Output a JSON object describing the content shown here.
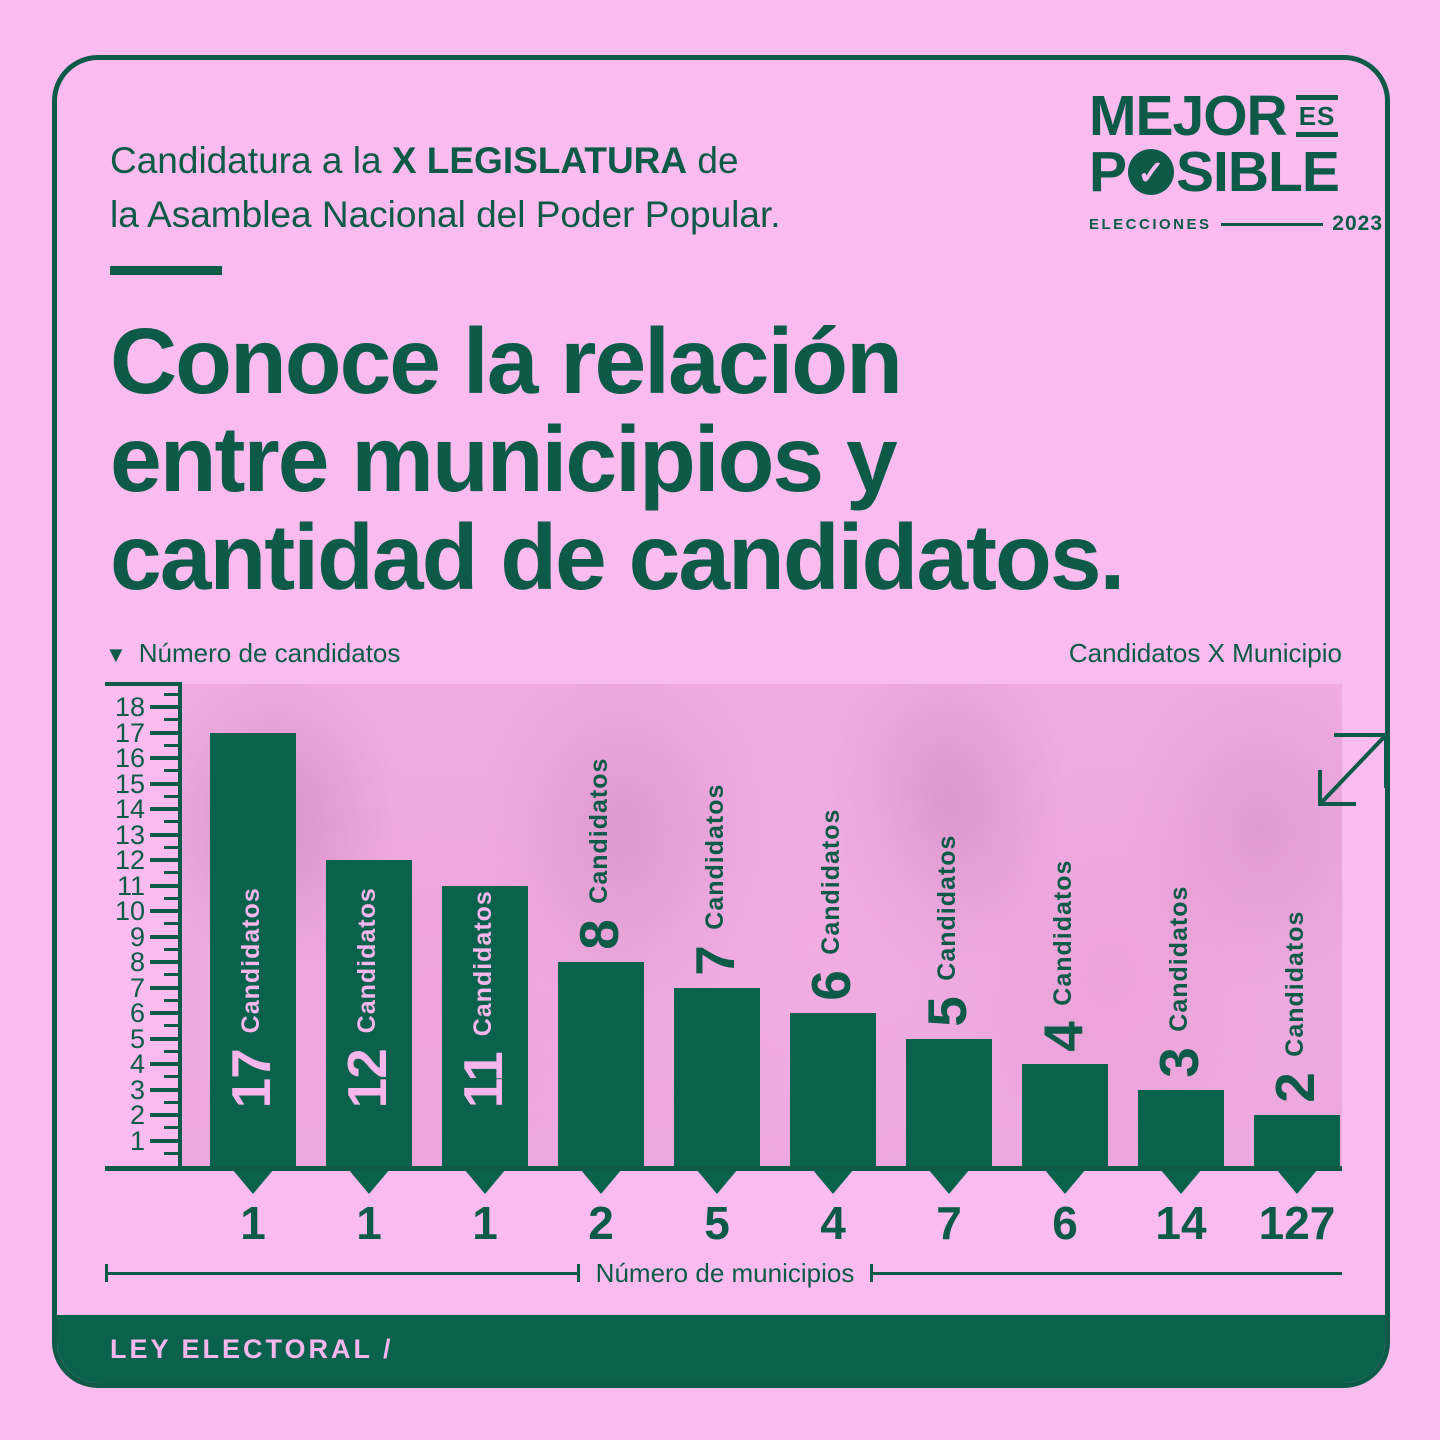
{
  "theme": {
    "background_pink": "#fabcef",
    "text_green": "#0d5a49",
    "bar_green": "#0b624c",
    "inside_label_pink": "#f7b6ec",
    "photo_overlay_pink": "#eda8de"
  },
  "header": {
    "line1_prefix": "Candidatura a la ",
    "line1_bold": "X LEGISLATURA",
    "line1_suffix": " de",
    "line2": "la Asamblea Nacional del Poder Popular."
  },
  "logo": {
    "word1": "MEJOR",
    "es": "ES",
    "p": "P",
    "check": "✓",
    "sible": "SIBLE",
    "sub_left": "ELECCIONES",
    "sub_right": "2023"
  },
  "title": {
    "line1": "Conoce la relación",
    "line2": "entre municipios y",
    "line3": "cantidad de candidatos."
  },
  "labels": {
    "y_axis_marker": "▼"
  },
  "footer": {
    "label": "LEY ELECTORAL /"
  },
  "chart_data": {
    "type": "bar",
    "title": "Relación entre municipios y cantidad de candidatos",
    "categories": [
      "1",
      "1",
      "1",
      "2",
      "5",
      "4",
      "7",
      "6",
      "14",
      "127"
    ],
    "values": [
      17,
      12,
      11,
      8,
      7,
      6,
      5,
      4,
      3,
      2
    ],
    "bar_value_word": "Candidatos",
    "ylabel": "Número de candidatos",
    "right_label": "Candidatos X Municipio",
    "xlabel": "Número de municipios",
    "ylim": [
      0,
      18
    ],
    "yticks": [
      1,
      2,
      3,
      4,
      5,
      6,
      7,
      8,
      9,
      10,
      11,
      12,
      13,
      14,
      15,
      16,
      17,
      18
    ],
    "grid": false,
    "legend_position": "none",
    "label_placement_note": "values >= 10 labeled inside bar in pink, others above bar in green"
  }
}
